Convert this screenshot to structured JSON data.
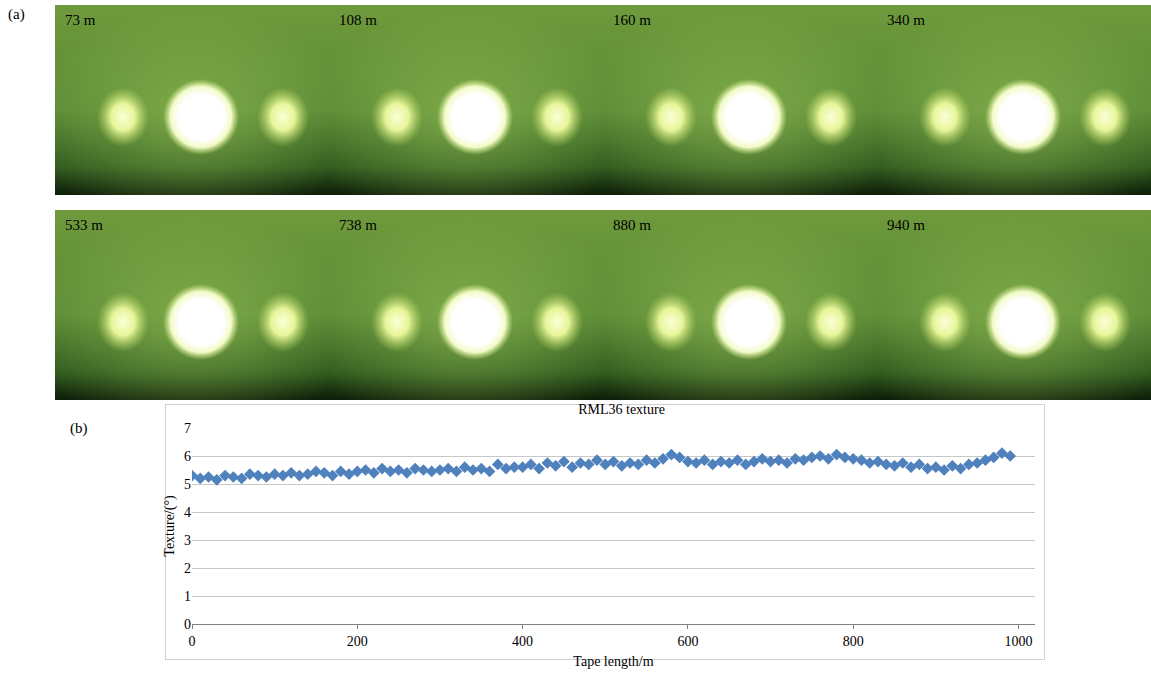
{
  "figure_a": {
    "panel_label": "(a)",
    "images": [
      {
        "label": "73 m"
      },
      {
        "label": "108 m"
      },
      {
        "label": "160 m"
      },
      {
        "label": "340 m"
      },
      {
        "label": "533 m"
      },
      {
        "label": "738 m"
      },
      {
        "label": "880 m"
      },
      {
        "label": "940 m"
      }
    ]
  },
  "chart_data": {
    "type": "scatter",
    "title": "RML36 texture",
    "x_label": "Tape length/m",
    "y_label": "Texture/(°)",
    "annotations": [
      "(b)"
    ],
    "color": "#4f81bd",
    "marker": "diamond",
    "x": [
      0,
      10,
      20,
      30,
      40,
      50,
      60,
      70,
      80,
      90,
      100,
      110,
      120,
      130,
      140,
      150,
      160,
      170,
      180,
      190,
      200,
      210,
      220,
      230,
      240,
      250,
      260,
      270,
      280,
      290,
      300,
      310,
      320,
      330,
      340,
      350,
      360,
      370,
      380,
      390,
      400,
      410,
      420,
      430,
      440,
      450,
      460,
      470,
      480,
      490,
      500,
      510,
      520,
      530,
      540,
      550,
      560,
      570,
      580,
      590,
      600,
      610,
      620,
      630,
      640,
      650,
      660,
      670,
      680,
      690,
      700,
      710,
      720,
      730,
      740,
      750,
      760,
      770,
      780,
      790,
      800,
      810,
      820,
      830,
      840,
      850,
      860,
      870,
      880,
      890,
      900,
      910,
      920,
      930,
      940,
      950,
      960,
      970,
      980,
      990
    ],
    "values": [
      5.3,
      5.2,
      5.25,
      5.15,
      5.3,
      5.25,
      5.2,
      5.35,
      5.3,
      5.25,
      5.35,
      5.3,
      5.4,
      5.3,
      5.35,
      5.45,
      5.4,
      5.3,
      5.45,
      5.35,
      5.45,
      5.5,
      5.4,
      5.55,
      5.45,
      5.5,
      5.4,
      5.55,
      5.5,
      5.45,
      5.5,
      5.55,
      5.45,
      5.6,
      5.5,
      5.55,
      5.45,
      5.7,
      5.55,
      5.6,
      5.6,
      5.7,
      5.55,
      5.75,
      5.65,
      5.8,
      5.6,
      5.75,
      5.7,
      5.85,
      5.7,
      5.8,
      5.65,
      5.75,
      5.7,
      5.85,
      5.75,
      5.9,
      6.05,
      5.95,
      5.8,
      5.75,
      5.85,
      5.7,
      5.8,
      5.75,
      5.85,
      5.7,
      5.8,
      5.9,
      5.8,
      5.85,
      5.75,
      5.9,
      5.85,
      5.95,
      6.0,
      5.9,
      6.05,
      5.95,
      5.9,
      5.85,
      5.75,
      5.8,
      5.7,
      5.65,
      5.75,
      5.6,
      5.7,
      5.55,
      5.6,
      5.5,
      5.65,
      5.55,
      5.7,
      5.75,
      5.85,
      5.95,
      6.1,
      6.0
    ],
    "xlim": [
      0,
      1020
    ],
    "xticks": [
      0,
      200,
      400,
      600,
      800,
      1000
    ],
    "ylim": [
      0,
      7
    ],
    "yticks": [
      0,
      1,
      2,
      3,
      4,
      5,
      6,
      7
    ],
    "grid": true
  }
}
